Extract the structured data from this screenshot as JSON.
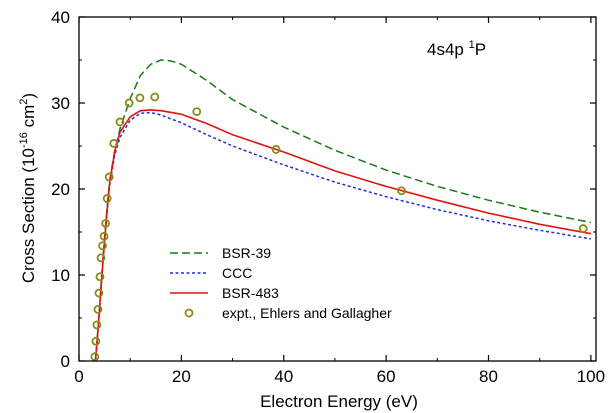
{
  "chart_data": {
    "type": "line",
    "xlabel": "Electron Energy (eV)",
    "ylabel": {
      "main": "Cross Section  (10",
      "exp": "-16",
      "unit": " cm",
      "unit_exp": "2",
      "close": ")"
    },
    "annotation": {
      "main": "4s4p ",
      "sup": "1",
      "term": "P"
    },
    "xlim": [
      0,
      101
    ],
    "ylim": [
      0,
      40
    ],
    "x_ticks": [
      0,
      20,
      40,
      60,
      80,
      100
    ],
    "y_ticks": [
      0,
      10,
      20,
      30,
      40
    ],
    "legend_position": "lower-left",
    "series": [
      {
        "name": "BSR-39",
        "style": "dashed",
        "color": "#1a7a1a",
        "points": [
          [
            3.2,
            0
          ],
          [
            3.5,
            2
          ],
          [
            4,
            6
          ],
          [
            4.5,
            10.5
          ],
          [
            5,
            14.5
          ],
          [
            5.5,
            18
          ],
          [
            6,
            21
          ],
          [
            7,
            24.5
          ],
          [
            8,
            27
          ],
          [
            10,
            30.5
          ],
          [
            12,
            33.2
          ],
          [
            14,
            34.5
          ],
          [
            16,
            35
          ],
          [
            18,
            34.9
          ],
          [
            20,
            34.5
          ],
          [
            25,
            32.6
          ],
          [
            30,
            30.4
          ],
          [
            40,
            27.2
          ],
          [
            50,
            24.5
          ],
          [
            60,
            22.2
          ],
          [
            70,
            20.3
          ],
          [
            80,
            18.7
          ],
          [
            90,
            17.3
          ],
          [
            100,
            16.1
          ]
        ]
      },
      {
        "name": "CCC",
        "style": "dotted",
        "color": "#1f2fd6",
        "points": [
          [
            3.2,
            0
          ],
          [
            3.5,
            2
          ],
          [
            4,
            6
          ],
          [
            4.5,
            10
          ],
          [
            5,
            14
          ],
          [
            5.5,
            17.5
          ],
          [
            6,
            20.5
          ],
          [
            7,
            24
          ],
          [
            8,
            26
          ],
          [
            10,
            28
          ],
          [
            12,
            28.8
          ],
          [
            14,
            28.9
          ],
          [
            16,
            28.6
          ],
          [
            20,
            27.7
          ],
          [
            25,
            26.3
          ],
          [
            30,
            25
          ],
          [
            40,
            22.8
          ],
          [
            50,
            20.8
          ],
          [
            60,
            19.1
          ],
          [
            70,
            17.6
          ],
          [
            80,
            16.3
          ],
          [
            90,
            15.2
          ],
          [
            100,
            14.2
          ]
        ]
      },
      {
        "name": "BSR-483",
        "style": "solid",
        "color": "#e0140f",
        "points": [
          [
            3.2,
            0
          ],
          [
            3.5,
            2
          ],
          [
            4,
            6
          ],
          [
            4.5,
            10
          ],
          [
            5,
            14
          ],
          [
            5.5,
            17.6
          ],
          [
            6,
            20.8
          ],
          [
            7,
            24.4
          ],
          [
            8,
            26.6
          ],
          [
            10,
            28.4
          ],
          [
            12,
            29.1
          ],
          [
            14,
            29.2
          ],
          [
            16,
            29.1
          ],
          [
            20,
            28.7
          ],
          [
            25,
            27.6
          ],
          [
            30,
            26.3
          ],
          [
            40,
            24.3
          ],
          [
            50,
            22.1
          ],
          [
            60,
            20.3
          ],
          [
            70,
            18.7
          ],
          [
            80,
            17.2
          ],
          [
            90,
            15.9
          ],
          [
            100,
            14.8
          ]
        ]
      },
      {
        "name": "expt., Ehlers and Gallagher",
        "style": "markers",
        "color": "#8a8a1a",
        "points": [
          [
            3.1,
            0.5
          ],
          [
            3.3,
            2.3
          ],
          [
            3.5,
            4.2
          ],
          [
            3.7,
            6
          ],
          [
            3.9,
            7.9
          ],
          [
            4.1,
            9.8
          ],
          [
            4.3,
            12
          ],
          [
            4.6,
            13.4
          ],
          [
            4.9,
            14.5
          ],
          [
            5.2,
            16
          ],
          [
            5.5,
            18.9
          ],
          [
            5.9,
            21.4
          ],
          [
            6.8,
            25.3
          ],
          [
            8,
            27.8
          ],
          [
            9.8,
            30
          ],
          [
            11.9,
            30.6
          ],
          [
            14.8,
            30.7
          ],
          [
            23,
            29
          ],
          [
            38.5,
            24.6
          ],
          [
            63,
            19.8
          ],
          [
            98.5,
            15.4
          ]
        ]
      }
    ]
  }
}
